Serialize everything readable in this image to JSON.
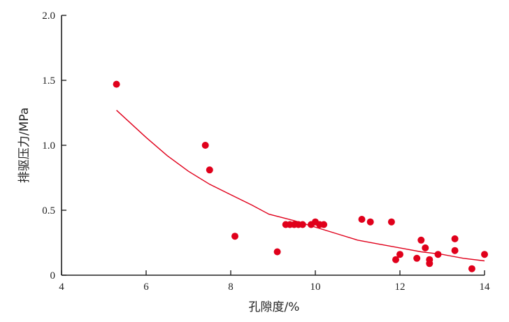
{
  "chart_data": {
    "type": "scatter",
    "title": "",
    "xlabel": "孔隙度/%",
    "ylabel": "排驱压力/MPa",
    "xlim": [
      4,
      14
    ],
    "ylim": [
      0,
      2.0
    ],
    "x_ticks": [
      "4",
      "6",
      "8",
      "10",
      "12",
      "14"
    ],
    "y_ticks": [
      "0",
      "0.5",
      "1.0",
      "1.5",
      "2.0"
    ],
    "grid": false,
    "legend": "none",
    "colors": {
      "points": "#e0001b",
      "trend": "#e0001b",
      "axis": "#222222"
    },
    "series": [
      {
        "type": "scatter",
        "points": [
          [
            5.3,
            1.47
          ],
          [
            7.4,
            1.0
          ],
          [
            7.5,
            0.81
          ],
          [
            8.1,
            0.3
          ],
          [
            9.1,
            0.18
          ],
          [
            9.3,
            0.39
          ],
          [
            9.4,
            0.39
          ],
          [
            9.5,
            0.39
          ],
          [
            9.6,
            0.39
          ],
          [
            9.7,
            0.39
          ],
          [
            9.9,
            0.39
          ],
          [
            10.0,
            0.41
          ],
          [
            10.1,
            0.39
          ],
          [
            10.2,
            0.39
          ],
          [
            11.1,
            0.43
          ],
          [
            11.3,
            0.41
          ],
          [
            11.8,
            0.41
          ],
          [
            11.9,
            0.12
          ],
          [
            12.0,
            0.16
          ],
          [
            12.4,
            0.13
          ],
          [
            12.5,
            0.27
          ],
          [
            12.6,
            0.21
          ],
          [
            12.7,
            0.12
          ],
          [
            12.7,
            0.09
          ],
          [
            12.9,
            0.16
          ],
          [
            13.3,
            0.28
          ],
          [
            13.3,
            0.19
          ],
          [
            13.7,
            0.05
          ],
          [
            14.0,
            0.16
          ]
        ]
      },
      {
        "type": "line",
        "points": [
          [
            5.3,
            1.27
          ],
          [
            6.0,
            1.06
          ],
          [
            6.5,
            0.92
          ],
          [
            7.0,
            0.8
          ],
          [
            7.5,
            0.7
          ],
          [
            8.0,
            0.62
          ],
          [
            8.5,
            0.54
          ],
          [
            8.9,
            0.47
          ],
          [
            9.5,
            0.42
          ],
          [
            10.0,
            0.37
          ],
          [
            10.5,
            0.32
          ],
          [
            11.0,
            0.27
          ],
          [
            11.5,
            0.24
          ],
          [
            12.0,
            0.21
          ],
          [
            12.5,
            0.18
          ],
          [
            13.0,
            0.16
          ],
          [
            13.5,
            0.13
          ],
          [
            14.0,
            0.11
          ]
        ]
      }
    ]
  }
}
